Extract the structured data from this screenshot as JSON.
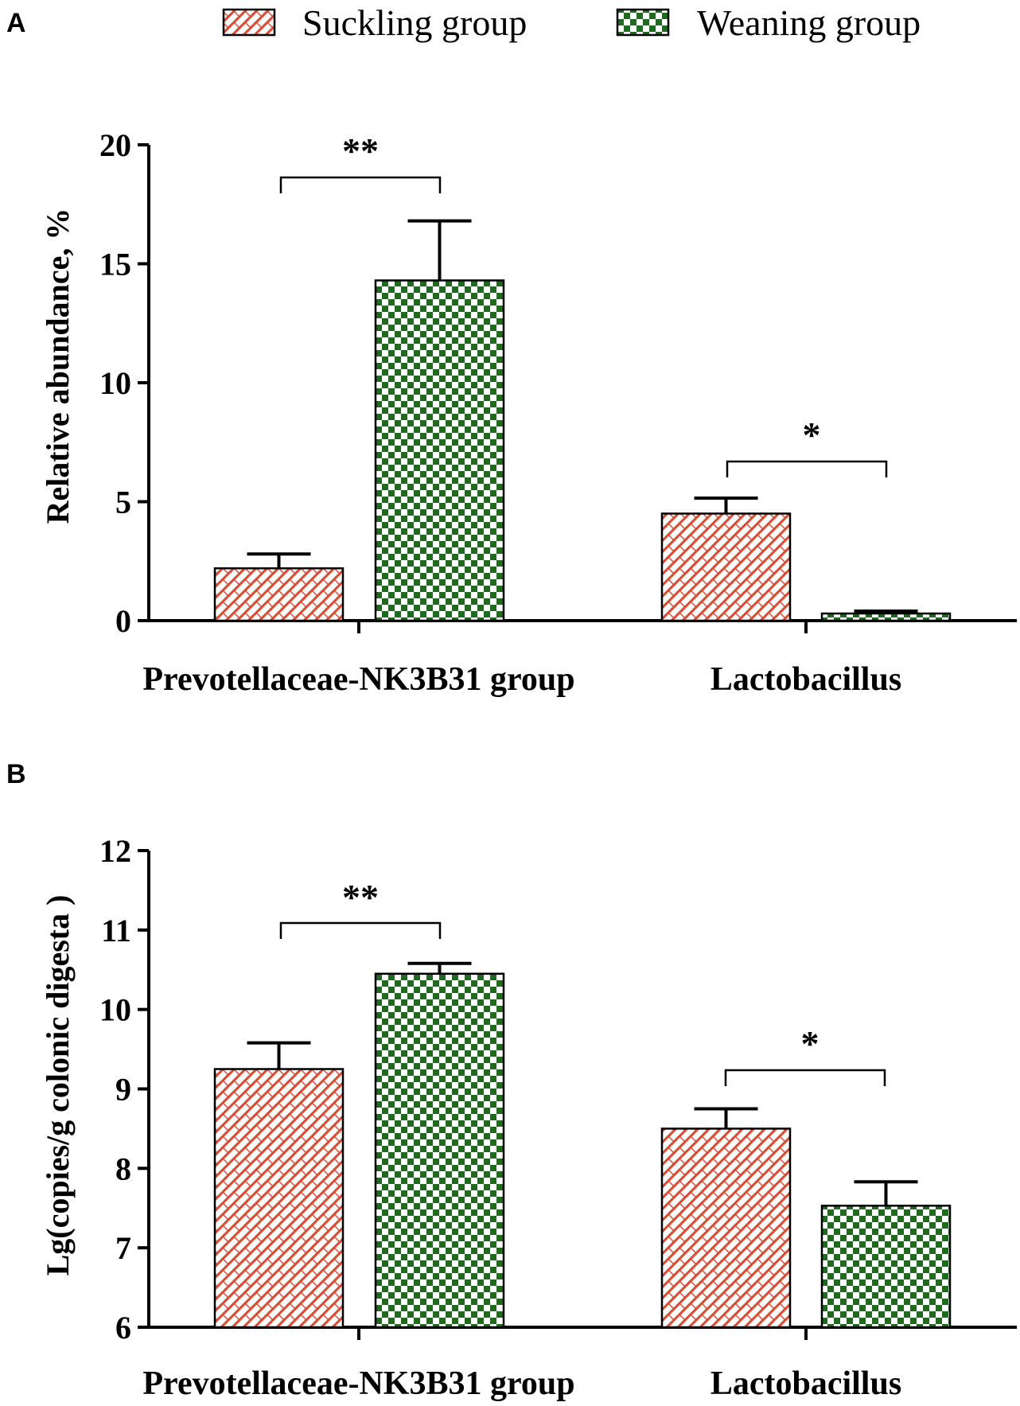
{
  "legend": [
    {
      "name": "Suckling group",
      "pattern": "hatch",
      "color": "#e8462a"
    },
    {
      "name": "Weaning group",
      "pattern": "checker",
      "color": "#1e6b1e"
    }
  ],
  "chart_data": [
    {
      "type": "bar",
      "panel": "A",
      "ylabel": "Relative abundance, %",
      "categories": [
        "Prevotellaceae-NK3B31 group",
        "Lactobacillus"
      ],
      "ylim": [
        0,
        20
      ],
      "yticks": [
        "0",
        "5",
        "10",
        "15",
        "20"
      ],
      "series": [
        {
          "name": "Suckling group",
          "values": [
            2.2,
            4.5
          ],
          "errors": [
            0.6,
            0.65
          ]
        },
        {
          "name": "Weaning group",
          "values": [
            14.3,
            0.3
          ],
          "errors": [
            2.5,
            0.1
          ]
        }
      ],
      "significance": [
        {
          "category": 0,
          "label": "**"
        },
        {
          "category": 1,
          "label": "*"
        }
      ]
    },
    {
      "type": "bar",
      "panel": "B",
      "ylabel": "Lg(copies/g colonic digesta )",
      "categories": [
        "Prevotellaceae-NK3B31 group",
        "Lactobacillus"
      ],
      "ylim": [
        6,
        12
      ],
      "yticks": [
        "6",
        "7",
        "8",
        "9",
        "10",
        "11",
        "12"
      ],
      "series": [
        {
          "name": "Suckling group",
          "values": [
            9.25,
            8.5
          ],
          "errors": [
            0.33,
            0.25
          ]
        },
        {
          "name": "Weaning group",
          "values": [
            10.45,
            7.53
          ],
          "errors": [
            0.13,
            0.3
          ]
        }
      ],
      "significance": [
        {
          "category": 0,
          "label": "**"
        },
        {
          "category": 1,
          "label": "*"
        }
      ]
    }
  ]
}
